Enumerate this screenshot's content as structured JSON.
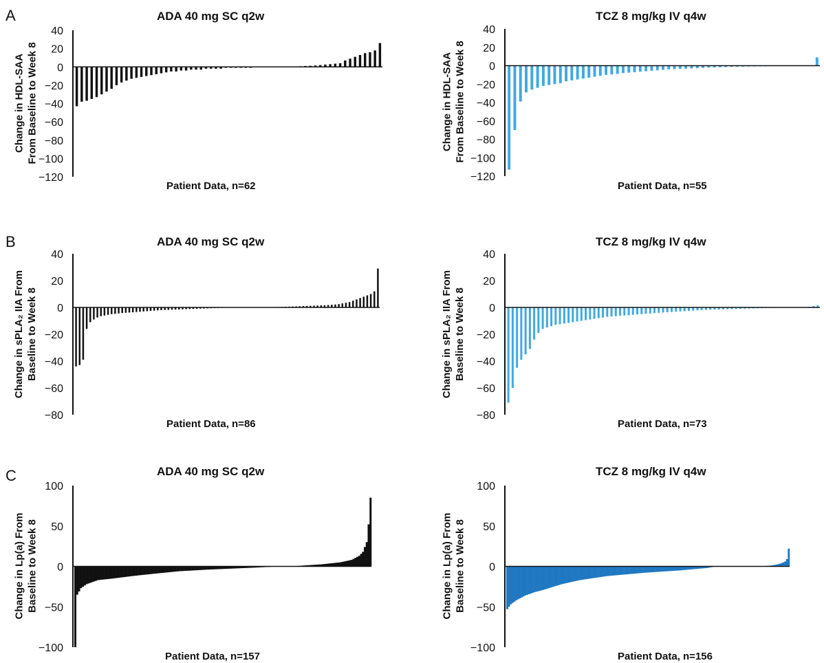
{
  "panels": {
    "a": "A",
    "b": "B",
    "c": "C"
  },
  "chart_data": [
    {
      "type": "bar",
      "panel": "A",
      "title": "ADA  40 mg SC q2w",
      "xlabel": "Patient Data, n=62",
      "ylabel_lines": [
        "Change in HDL-SAA",
        "From Baseline to Week 8"
      ],
      "ylim": [
        -120,
        40
      ],
      "yticks": [
        40,
        20,
        0,
        -20,
        -40,
        -60,
        -80,
        -100,
        -120
      ],
      "tick_labels": [
        "40",
        "20",
        "0",
        "−20",
        "−40",
        "−60",
        "−80",
        "−100",
        "−120"
      ],
      "color": "#111111",
      "bar_style": "spaced",
      "values": [
        -43,
        -38,
        -37,
        -35,
        -33,
        -30,
        -27,
        -24,
        -20,
        -17,
        -15,
        -13,
        -12,
        -11,
        -10,
        -9,
        -8,
        -7,
        -6,
        -5,
        -5,
        -4,
        -4,
        -3,
        -3,
        -3,
        -2,
        -2,
        -2,
        -2,
        -1,
        -1,
        -1,
        -1,
        -1,
        -1,
        0,
        0,
        0,
        0,
        0,
        0,
        0,
        0.3,
        0.5,
        0.7,
        1,
        1.2,
        1.5,
        2,
        2.5,
        3,
        3.5,
        4,
        7,
        9,
        11,
        13,
        15,
        16,
        18,
        26
      ]
    },
    {
      "type": "bar",
      "panel": "A",
      "title": "TCZ 8 mg/kg IV q4w",
      "xlabel": "Patient Data, n=55",
      "ylabel_lines": [
        "Change in HDL-SAA",
        "From Baseline to Week 8"
      ],
      "ylim": [
        -120,
        40
      ],
      "yticks": [
        40,
        20,
        0,
        -20,
        -40,
        -60,
        -80,
        -100,
        -120
      ],
      "tick_labels": [
        "40",
        "20",
        "0",
        "−20",
        "−40",
        "−60",
        "−80",
        "−100",
        "−120"
      ],
      "color": "#3fa9e0",
      "bar_style": "spaced",
      "values": [
        -113,
        -70,
        -39,
        -29,
        -26,
        -24,
        -22,
        -21,
        -20,
        -19,
        -17,
        -16,
        -15,
        -14,
        -13,
        -12,
        -11,
        -10,
        -9.5,
        -9,
        -8,
        -7.5,
        -7,
        -6.5,
        -6,
        -5.5,
        -5,
        -4.5,
        -4,
        -3.8,
        -3.5,
        -3.2,
        -3,
        -2.7,
        -2.4,
        -2.1,
        -1.9,
        -1.7,
        -1.5,
        -1.3,
        -1.1,
        -1,
        -0.9,
        -0.8,
        -0.7,
        -0.6,
        -0.5,
        -0.4,
        -0.3,
        -0.2,
        -0.2,
        -0.1,
        -0.1,
        0,
        9
      ]
    },
    {
      "type": "bar",
      "panel": "B",
      "title": "ADA  40 mg SC q2w",
      "xlabel": "Patient Data, n=86",
      "ylabel_lines": [
        "Change in sPLA₂ IIA From",
        "Baseline to Week 8"
      ],
      "ylim": [
        -80,
        40
      ],
      "yticks": [
        40,
        20,
        0,
        -20,
        -40,
        -60,
        -80
      ],
      "tick_labels": [
        "40",
        "20",
        "0",
        "−20",
        "−40",
        "−60",
        "−80"
      ],
      "color": "#111111",
      "bar_style": "spaced",
      "values": [
        -44,
        -43,
        -39,
        -16,
        -11,
        -9,
        -7.5,
        -6.5,
        -6,
        -5.5,
        -5,
        -4.8,
        -4.5,
        -4.2,
        -4,
        -3.8,
        -3.6,
        -3.4,
        -3.2,
        -3,
        -2.8,
        -2.6,
        -2.4,
        -2.2,
        -2,
        -1.9,
        -1.8,
        -1.7,
        -1.6,
        -1.5,
        -1.4,
        -1.3,
        -1.2,
        -1.1,
        -1,
        -0.9,
        -0.8,
        -0.7,
        -0.6,
        -0.5,
        -0.4,
        -0.3,
        -0.2,
        -0.1,
        -0.1,
        0,
        0,
        0,
        0,
        0,
        0,
        0,
        0,
        0,
        0,
        0.1,
        0.2,
        0.3,
        0.4,
        0.5,
        0.6,
        0.7,
        0.8,
        0.9,
        1,
        1.1,
        1.2,
        1.3,
        1.4,
        1.5,
        1.6,
        1.8,
        2,
        2.2,
        2.5,
        3,
        3.5,
        4,
        5,
        6,
        7,
        8,
        9,
        10,
        12,
        29
      ]
    },
    {
      "type": "bar",
      "panel": "B",
      "title": "TCZ 8 mg/kg IV q4w",
      "xlabel": "Patient Data, n=73",
      "ylabel_lines": [
        "Change in sPLA₂ IIA From",
        "Baseline to Week 8"
      ],
      "ylim": [
        -80,
        40
      ],
      "yticks": [
        40,
        20,
        0,
        -20,
        -40,
        -60,
        -80
      ],
      "tick_labels": [
        "40",
        "20",
        "0",
        "−20",
        "−40",
        "−60",
        "−80"
      ],
      "color": "#3fa9e0",
      "bar_style": "spaced",
      "values": [
        -71,
        -60,
        -45,
        -39,
        -35,
        -31,
        -24,
        -19,
        -16,
        -15,
        -14,
        -13,
        -12.5,
        -12,
        -11.5,
        -11,
        -10.5,
        -10,
        -9.5,
        -9,
        -8.5,
        -8,
        -7.5,
        -7,
        -6.8,
        -6.5,
        -6.2,
        -6,
        -5.8,
        -5.5,
        -5.2,
        -5,
        -4.8,
        -4.5,
        -4.2,
        -4,
        -3.8,
        -3.6,
        -3.4,
        -3.2,
        -3,
        -2.8,
        -2.6,
        -2.4,
        -2.2,
        -2,
        -1.8,
        -1.7,
        -1.6,
        -1.5,
        -1.4,
        -1.3,
        -1.2,
        -1.1,
        -1,
        -0.9,
        -0.8,
        -0.7,
        -0.6,
        -0.5,
        -0.4,
        -0.3,
        -0.3,
        -0.2,
        -0.2,
        -0.1,
        -0.1,
        0,
        0,
        0,
        0.5,
        1,
        1.5
      ]
    },
    {
      "type": "bar",
      "panel": "C",
      "title": "ADA  40 mg SC q2w",
      "xlabel": "Patient Data, n=157",
      "ylabel_lines": [
        "Change in Lp(a) From",
        "Baseline to Week 8"
      ],
      "ylim": [
        -100,
        100
      ],
      "yticks": [
        100,
        50,
        0,
        -50,
        -100
      ],
      "tick_labels": [
        "100",
        "50",
        "0",
        "−50",
        "−100"
      ],
      "color": "#111111",
      "bar_style": "dense",
      "n": 157,
      "shape_points": [
        [
          0,
          -100
        ],
        [
          1,
          -35
        ],
        [
          3,
          -27
        ],
        [
          6,
          -22
        ],
        [
          12,
          -17
        ],
        [
          20,
          -15
        ],
        [
          30,
          -12
        ],
        [
          42,
          -9
        ],
        [
          55,
          -6
        ],
        [
          70,
          -4
        ],
        [
          85,
          -2.5
        ],
        [
          95,
          -1.5
        ],
        [
          108,
          0
        ],
        [
          115,
          0
        ],
        [
          120,
          1
        ],
        [
          130,
          2.5
        ],
        [
          140,
          5
        ],
        [
          146,
          8
        ],
        [
          150,
          13
        ],
        [
          152,
          18
        ],
        [
          154,
          30
        ],
        [
          155,
          52
        ],
        [
          156,
          85
        ]
      ]
    },
    {
      "type": "bar",
      "panel": "C",
      "title": "TCZ 8 mg/kg IV q4w",
      "xlabel": "Patient Data, n=156",
      "ylabel_lines": [
        "Change in Lp(a) From",
        "Baseline to Week 8"
      ],
      "ylim": [
        -100,
        100
      ],
      "yticks": [
        100,
        50,
        0,
        -50,
        -100
      ],
      "tick_labels": [
        "100",
        "50",
        "0",
        "−50",
        "−100"
      ],
      "color": "#1f78c1",
      "bar_style": "dense",
      "n": 156,
      "shape_points": [
        [
          0,
          -53
        ],
        [
          2,
          -47
        ],
        [
          5,
          -42
        ],
        [
          10,
          -36
        ],
        [
          15,
          -32
        ],
        [
          20,
          -29
        ],
        [
          30,
          -22
        ],
        [
          40,
          -17
        ],
        [
          55,
          -12
        ],
        [
          75,
          -8
        ],
        [
          95,
          -5
        ],
        [
          110,
          -2
        ],
        [
          115,
          0
        ],
        [
          140,
          0
        ],
        [
          145,
          1
        ],
        [
          148,
          2
        ],
        [
          151,
          4
        ],
        [
          153,
          6
        ],
        [
          154,
          9
        ],
        [
          155,
          22
        ]
      ]
    }
  ]
}
